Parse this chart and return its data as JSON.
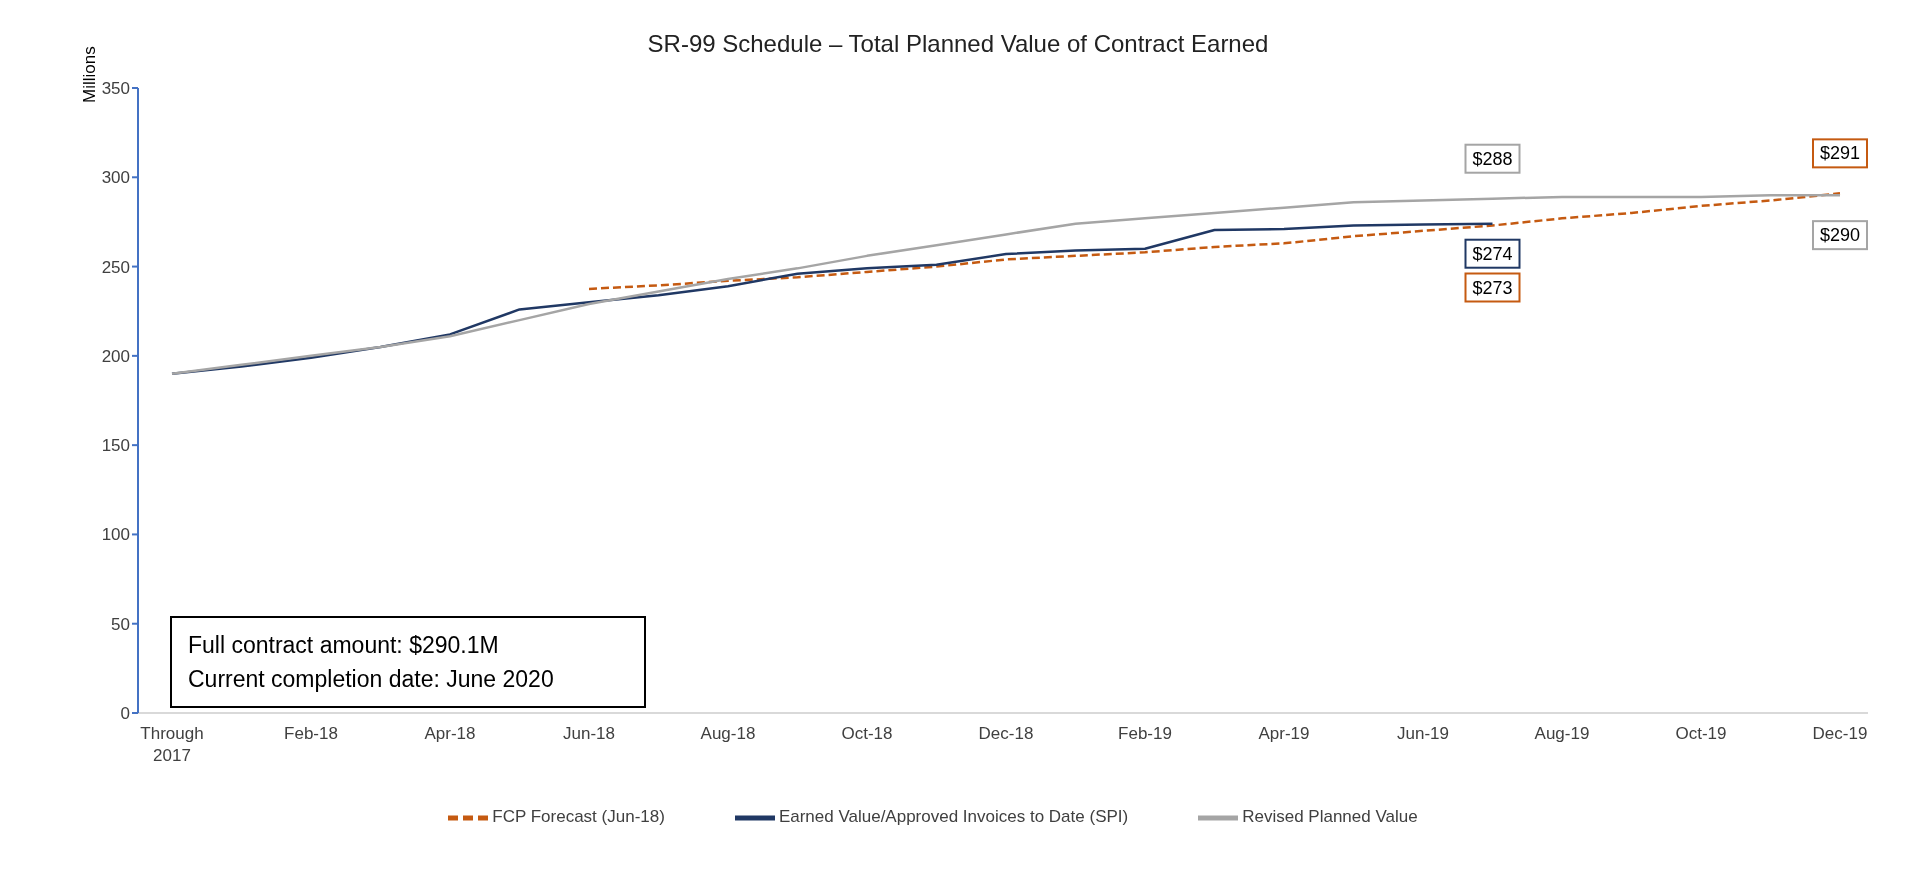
{
  "chart_data": {
    "type": "line",
    "title": "SR-99 Schedule – Total Planned Value of Contract Earned",
    "ylabel": "Millions",
    "categories": [
      "Through 2017",
      null,
      "Feb-18",
      null,
      "Apr-18",
      null,
      "Jun-18",
      null,
      "Aug-18",
      null,
      "Oct-18",
      null,
      "Dec-18",
      null,
      "Feb-19",
      null,
      "Apr-19",
      null,
      "Jun-19",
      null,
      "Aug-19",
      null,
      "Oct-19",
      null,
      "Dec-19"
    ],
    "series": [
      {
        "name": "FCP Forecast (Jun-18)",
        "color": "#c55a11",
        "line_style": "dashed",
        "values": [
          null,
          null,
          null,
          null,
          null,
          null,
          237.5,
          239.5,
          242,
          244,
          247,
          250,
          254,
          256,
          258,
          261,
          263,
          267,
          270,
          273,
          277,
          280,
          284,
          287,
          291
        ],
        "value_labels": [
          null,
          null,
          null,
          null,
          null,
          null,
          null,
          null,
          null,
          null,
          null,
          null,
          null,
          null,
          null,
          null,
          null,
          null,
          null,
          "$273",
          null,
          null,
          null,
          null,
          "$291"
        ]
      },
      {
        "name": "Earned Value/Approved Invoices to Date (SPI)",
        "color": "#203864",
        "line_style": "solid",
        "values": [
          190,
          194,
          199,
          205,
          212,
          226,
          230,
          234,
          239,
          246,
          249,
          251,
          257,
          259,
          260,
          270.5,
          271,
          273,
          273.5,
          274,
          null,
          null,
          null,
          null,
          null
        ],
        "value_labels": [
          null,
          null,
          null,
          null,
          null,
          null,
          null,
          null,
          null,
          null,
          null,
          null,
          null,
          null,
          null,
          null,
          null,
          null,
          null,
          "$274",
          null,
          null,
          null,
          null,
          null
        ]
      },
      {
        "name": "Revised Planned Value",
        "color": "#a5a5a5",
        "line_style": "solid",
        "values": [
          190,
          195,
          200,
          205,
          211,
          220,
          229,
          236,
          243,
          249,
          256,
          262,
          268,
          274,
          277,
          280,
          283,
          286,
          287,
          288,
          289,
          289,
          289,
          290,
          290
        ],
        "value_labels": [
          null,
          null,
          null,
          null,
          null,
          null,
          null,
          null,
          null,
          null,
          null,
          null,
          null,
          null,
          null,
          null,
          null,
          null,
          null,
          "$288",
          null,
          null,
          null,
          null,
          "$290"
        ]
      }
    ],
    "ylim": [
      0,
      350
    ],
    "yticks": [
      0,
      50,
      100,
      150,
      200,
      250,
      300,
      350
    ],
    "grid": false,
    "legend": "bottom",
    "marker": "none",
    "annotations": [
      "Full contract amount: $290.1M",
      "Current completion date: June 2020"
    ]
  }
}
